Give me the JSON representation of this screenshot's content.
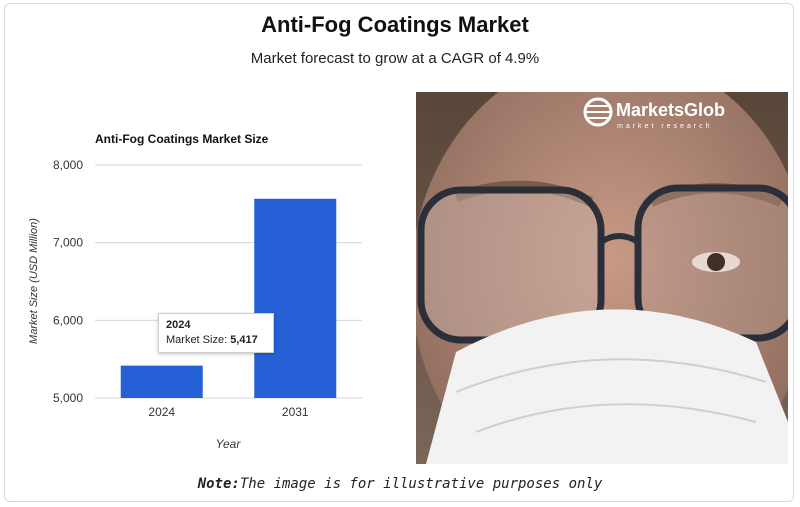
{
  "header": {
    "title": "Anti-Fog Coatings Market",
    "subtitle": "Market forecast to grow at a CAGR of 4.9%"
  },
  "chart_data": {
    "type": "bar",
    "title": "Anti-Fog Coatings Market Size",
    "xlabel": "Year",
    "ylabel": "Market Size (USD Million)",
    "categories": [
      "2024",
      "2031"
    ],
    "values": [
      5417,
      7565
    ],
    "ylim": [
      5000,
      8000
    ],
    "yticks": [
      5000,
      6000,
      7000,
      8000
    ],
    "ytick_labels": [
      "5,000",
      "6,000",
      "7,000",
      "8,000"
    ],
    "bar_color": "#2560d6",
    "grid": true
  },
  "tooltip": {
    "year": "2024",
    "label": "Market Size: ",
    "value": "5,417"
  },
  "photo": {
    "brand": "MarketsGlob",
    "brand_sub": "market research"
  },
  "note": {
    "prefix": "Note:",
    "text": "The image is for illustrative purposes only"
  }
}
